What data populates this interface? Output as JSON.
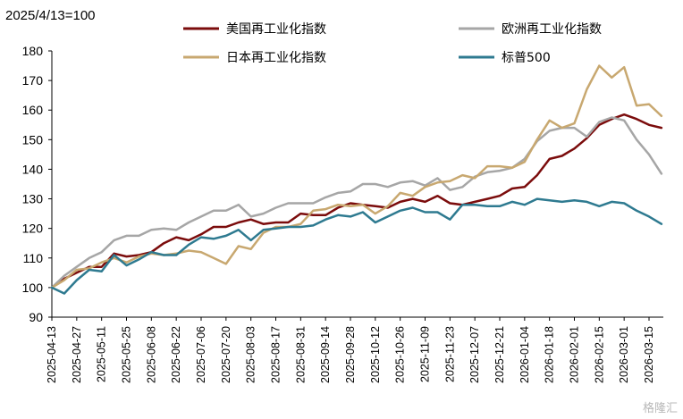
{
  "chart_data": {
    "type": "line",
    "unit_label": "2025/4/13=100",
    "ylim": [
      90,
      180
    ],
    "yticks": [
      90,
      100,
      110,
      120,
      130,
      140,
      150,
      160,
      170,
      180
    ],
    "grid": false,
    "legend_placement": "top",
    "x_tick_labels": [
      "2025-04-13",
      "2025-04-27",
      "2025-05-11",
      "2025-05-25",
      "2025-06-08",
      "2025-06-22",
      "2025-07-06",
      "2025-07-20",
      "2025-08-03",
      "2025-08-17",
      "2025-08-31",
      "2025-09-14",
      "2025-09-28",
      "2025-10-12",
      "2025-10-26",
      "2025-11-09",
      "2025-11-23",
      "2025-12-07",
      "2025-12-21",
      "2026-01-04",
      "2026-01-18",
      "2026-02-01",
      "2026-02-15",
      "2026-03-01",
      "2026-03-15"
    ],
    "x": [
      "2025-04-13",
      "2025-04-20",
      "2025-04-27",
      "2025-05-04",
      "2025-05-11",
      "2025-05-18",
      "2025-05-25",
      "2025-06-01",
      "2025-06-08",
      "2025-06-15",
      "2025-06-22",
      "2025-06-29",
      "2025-07-06",
      "2025-07-13",
      "2025-07-20",
      "2025-07-27",
      "2025-08-03",
      "2025-08-10",
      "2025-08-17",
      "2025-08-24",
      "2025-08-31",
      "2025-09-07",
      "2025-09-14",
      "2025-09-21",
      "2025-09-28",
      "2025-10-05",
      "2025-10-12",
      "2025-10-19",
      "2025-10-26",
      "2025-11-02",
      "2025-11-09",
      "2025-11-16",
      "2025-11-23",
      "2025-11-30",
      "2025-12-07",
      "2025-12-14",
      "2025-12-21",
      "2025-12-28",
      "2026-01-04",
      "2026-01-11",
      "2026-01-18",
      "2026-01-25",
      "2026-02-01",
      "2026-02-08",
      "2026-02-15",
      "2026-02-22",
      "2026-03-01",
      "2026-03-08",
      "2026-03-15",
      "2026-03-22"
    ],
    "series": [
      {
        "name": "美国再工业化指数",
        "color": "#7b0c0c",
        "values": [
          100,
          103,
          105,
          107,
          107,
          111.5,
          110.5,
          111,
          112,
          115,
          117,
          116,
          118,
          120.5,
          120.5,
          122,
          123,
          121.5,
          122,
          122,
          125,
          124.5,
          124.5,
          127,
          128.5,
          128,
          127.5,
          127,
          129,
          130,
          129,
          131,
          128.5,
          128,
          129,
          130,
          131,
          133.5,
          134,
          138,
          143.5,
          144.5,
          147,
          150.5,
          155,
          157,
          158.5,
          157,
          155,
          154
        ]
      },
      {
        "name": "欧洲再工业化指数",
        "color": "#a6a6a6",
        "values": [
          100,
          104,
          107,
          110,
          112,
          116,
          117.5,
          117.5,
          119.5,
          120,
          119.5,
          122,
          124,
          126,
          126,
          128,
          124,
          125,
          127,
          128.5,
          128.5,
          128.5,
          130.5,
          132,
          132.5,
          135,
          135,
          134,
          135.5,
          136,
          134.5,
          137,
          133,
          134,
          137.5,
          139,
          139.5,
          140.5,
          143.5,
          149.5,
          153,
          154,
          154,
          151,
          156,
          157.5,
          156.5,
          150,
          145,
          138.5
        ]
      },
      {
        "name": "日本再工业化指数",
        "color": "#c8a870",
        "values": [
          100,
          102.5,
          106,
          106.5,
          108.5,
          110,
          108.5,
          110.5,
          111.5,
          111,
          111.5,
          112.5,
          112,
          110,
          108,
          114,
          113,
          118.5,
          120.5,
          120.5,
          121.5,
          126,
          126.5,
          128,
          127.5,
          128,
          125,
          127.5,
          132,
          131,
          134,
          135.5,
          136,
          138,
          137,
          141,
          141,
          140.5,
          142.5,
          150,
          156.5,
          154,
          155.5,
          167,
          175,
          171,
          174.5,
          161.5,
          162,
          158
        ]
      },
      {
        "name": "标普500",
        "color": "#2e7a90",
        "values": [
          100,
          98,
          102.5,
          106,
          105.5,
          111,
          107.5,
          109.5,
          112,
          111,
          111,
          114.5,
          117,
          116.5,
          117.5,
          119.5,
          116,
          119.5,
          120,
          120.5,
          120.5,
          121,
          123,
          124.5,
          124,
          125.5,
          122,
          124,
          126,
          127,
          125.5,
          125.5,
          123,
          128,
          128,
          127.5,
          127.5,
          129,
          128,
          130,
          129.5,
          129,
          129.5,
          129,
          127.5,
          129,
          128.5,
          126,
          124,
          121.5
        ]
      }
    ]
  },
  "watermark": "格隆汇"
}
